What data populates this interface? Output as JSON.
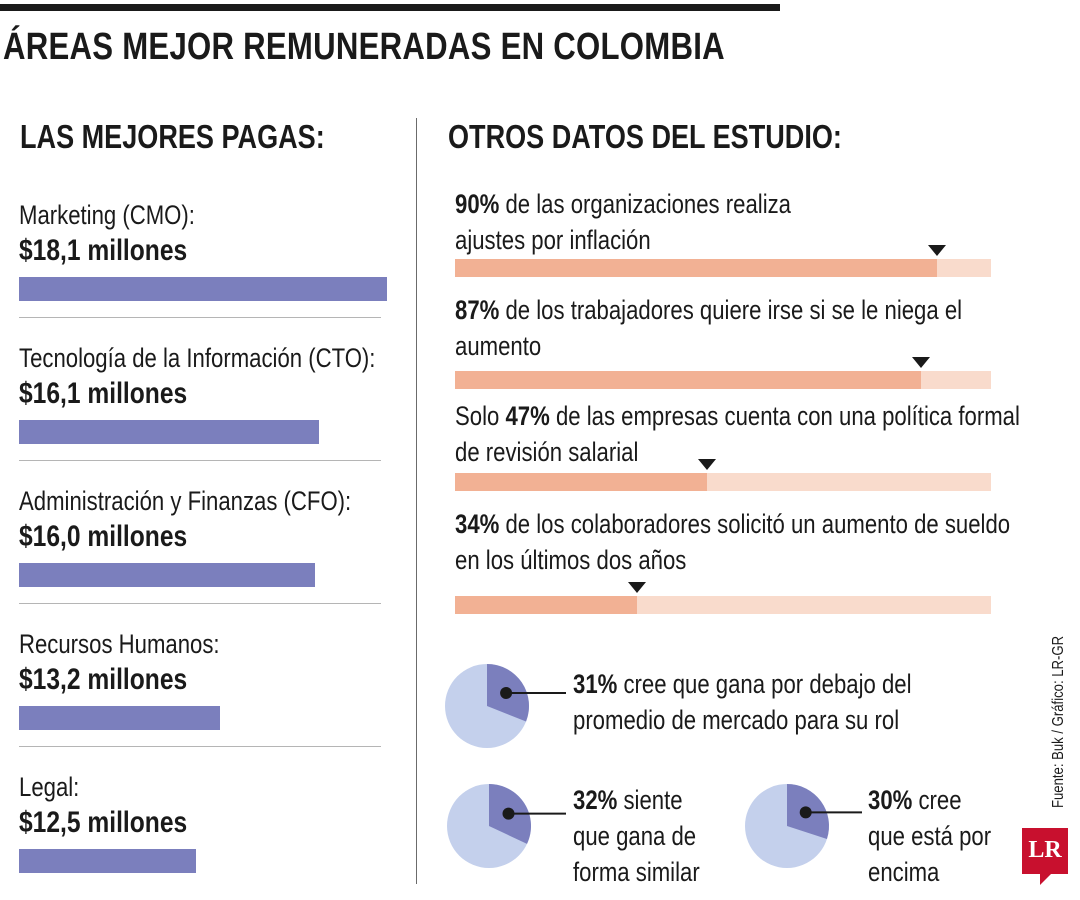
{
  "title": "ÁREAS MEJOR REMUNERADAS EN COLOMBIA",
  "left_heading": "LAS MEJORES PAGAS:",
  "right_heading": "OTROS DATOS DEL ESTUDIO:",
  "source": "Fuente: Buk / Gráfico: LR-GR",
  "logo_text": "LR",
  "colors": {
    "bar": "#7b7fbd",
    "progress_fill": "#f2b194",
    "progress_track": "#f9dbcc",
    "pie_share": "#7b7fbd",
    "pie_rest": "#c4d0ec",
    "logo": "#c8102e"
  },
  "chart_data": [
    {
      "type": "bar",
      "orientation": "horizontal",
      "title": "LAS MEJORES PAGAS:",
      "categories": [
        "Marketing (CMO):",
        "Tecnología de la Información (CTO):",
        "Administración y Finanzas (CFO):",
        "Recursos Humanos:",
        "Legal:"
      ],
      "values": [
        18.1,
        16.1,
        16.0,
        13.2,
        12.5
      ],
      "value_labels": [
        "$18,1 millones",
        "$16,1 millones",
        "$16,0 millones",
        "$13,2 millones",
        "$12,5 millones"
      ]
    },
    {
      "type": "bar",
      "orientation": "horizontal",
      "title": "OTROS DATOS DEL ESTUDIO:",
      "items": [
        {
          "value": 90,
          "pct": "90%",
          "prefix": "",
          "text": " de las organizaciones  realiza",
          "text2": "ajustes por inflación"
        },
        {
          "value": 87,
          "pct": "87%",
          "prefix": "",
          "text": " de los trabajadores quiere irse si se le niega el",
          "text2": "aumento"
        },
        {
          "value": 47,
          "pct": "47%",
          "prefix": "Solo ",
          "text": " de las empresas cuenta con una política formal",
          "text2": "de revisión salarial"
        },
        {
          "value": 34,
          "pct": "34%",
          "prefix": "",
          "text": " de los colaboradores solicitó un aumento de sueldo",
          "text2": "en los últimos dos años"
        }
      ]
    },
    {
      "type": "pie",
      "items": [
        {
          "value": 31,
          "pct": "31%",
          "lines": [
            " cree que gana por debajo del",
            "promedio de mercado para su rol"
          ]
        },
        {
          "value": 32,
          "pct": "32%",
          "lines": [
            " siente",
            "que gana de",
            "forma similar"
          ]
        },
        {
          "value": 30,
          "pct": "30%",
          "lines": [
            " cree",
            "que está por",
            "encima"
          ]
        }
      ]
    }
  ]
}
